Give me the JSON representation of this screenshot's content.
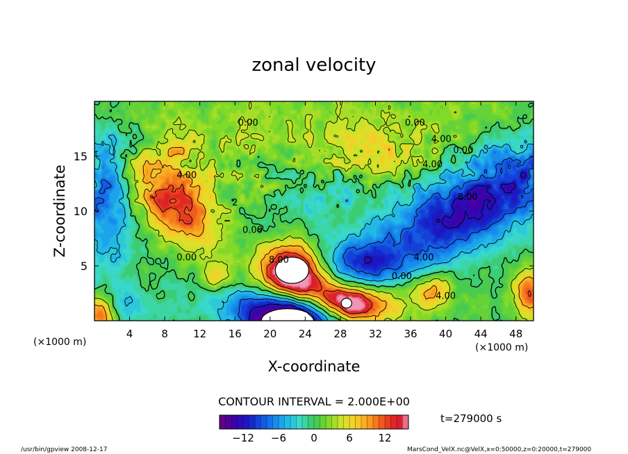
{
  "chart_data": {
    "type": "heatmap",
    "title": "zonal velocity",
    "xlabel": "X-coordinate",
    "ylabel": "Z-coordinate",
    "x_unit_left": "(×1000 m)",
    "x_unit_right": "(×1000 m)",
    "xlim": [
      0,
      50
    ],
    "ylim": [
      0,
      20
    ],
    "x_ticks": [
      "4",
      "8",
      "12",
      "16",
      "20",
      "24",
      "28",
      "32",
      "36",
      "40",
      "44",
      "48"
    ],
    "x_tick_values": [
      4,
      8,
      12,
      16,
      20,
      24,
      28,
      32,
      36,
      40,
      44,
      48
    ],
    "y_ticks": [
      "5",
      "10",
      "15"
    ],
    "y_tick_values": [
      5,
      10,
      15
    ],
    "contour_interval_text": "CONTOUR INTERVAL = 2.000E+00",
    "time_text": "t=279000 s",
    "colorbar": {
      "range": [
        -16,
        16
      ],
      "ticks": [
        "−12",
        "−6",
        "0",
        "6",
        "12"
      ],
      "tick_values": [
        -12,
        -6,
        0,
        6,
        12
      ]
    },
    "contour_labels": [
      {
        "text": "0.00",
        "x": 17.5,
        "z": 17.8
      },
      {
        "text": "0.00",
        "x": 36.5,
        "z": 17.8
      },
      {
        "text": "4.00",
        "x": 39.5,
        "z": 16.3
      },
      {
        "text": "0.00",
        "x": 42.0,
        "z": 15.3
      },
      {
        "text": "4.00",
        "x": 38.5,
        "z": 14.0
      },
      {
        "text": "8.00",
        "x": 42.5,
        "z": 11.0
      },
      {
        "text": "4.00",
        "x": 10.5,
        "z": 13.0
      },
      {
        "text": "2",
        "x": 16.0,
        "z": 10.5
      },
      {
        "text": "0.00",
        "x": 18.0,
        "z": 8.0
      },
      {
        "text": "0.00",
        "x": 10.5,
        "z": 5.5
      },
      {
        "text": "8.00",
        "x": 21.0,
        "z": 5.3
      },
      {
        "text": "4.00",
        "x": 37.5,
        "z": 5.5
      },
      {
        "text": "0.00",
        "x": 35.0,
        "z": 3.8
      },
      {
        "text": "4.00",
        "x": 40.0,
        "z": 2.0
      }
    ],
    "blobs": [
      {
        "x": 9.0,
        "z": 10.8,
        "sx": 3.5,
        "sz": 2.0,
        "amp": 13,
        "rot": -0.6
      },
      {
        "x": 22.5,
        "z": 4.5,
        "sx": 2.6,
        "sz": 1.8,
        "amp": 20,
        "rot": 0
      },
      {
        "x": 27.0,
        "z": 2.2,
        "sx": 4.5,
        "sz": 1.2,
        "amp": 11,
        "rot": -0.2
      },
      {
        "x": 29.0,
        "z": 1.5,
        "sx": 2.0,
        "sz": 1.0,
        "amp": 8,
        "rot": 0
      },
      {
        "x": 22.0,
        "z": 0.2,
        "sx": 3.5,
        "sz": 1.6,
        "amp": -20,
        "rot": 0
      },
      {
        "x": 45.5,
        "z": 11.8,
        "sx": 7.0,
        "sz": 2.8,
        "amp": -10,
        "rot": 0.35
      },
      {
        "x": 39.0,
        "z": 8.5,
        "sx": 6.0,
        "sz": 2.2,
        "amp": -6,
        "rot": 0.3
      },
      {
        "x": 30.0,
        "z": 5.3,
        "sx": 3.8,
        "sz": 1.5,
        "amp": -9,
        "rot": 0
      },
      {
        "x": 1.0,
        "z": 11.5,
        "sx": 2.4,
        "sz": 5.0,
        "amp": -8,
        "rot": 0
      },
      {
        "x": 18.5,
        "z": 1.8,
        "sx": 5.0,
        "sz": 1.6,
        "amp": -5,
        "rot": 0
      },
      {
        "x": 3.0,
        "z": 1.3,
        "sx": 2.8,
        "sz": 1.2,
        "amp": -5,
        "rot": 0
      },
      {
        "x": 0.8,
        "z": 0.8,
        "sx": 1.2,
        "sz": 1.2,
        "amp": 14,
        "rot": 0
      },
      {
        "x": 49.5,
        "z": 2.5,
        "sx": 1.3,
        "sz": 1.5,
        "amp": 11,
        "rot": 0
      },
      {
        "x": 38.5,
        "z": 2.8,
        "sx": 1.5,
        "sz": 1.0,
        "amp": 8,
        "rot": 0
      },
      {
        "x": 32.5,
        "z": 2.0,
        "sx": 4.0,
        "sz": 1.2,
        "amp": 4,
        "rot": 0
      },
      {
        "x": 31.5,
        "z": 15.5,
        "sx": 6.0,
        "sz": 1.8,
        "amp": 5,
        "rot": 0
      },
      {
        "x": 26.0,
        "z": 11.5,
        "sx": 5.0,
        "sz": 3.0,
        "amp": -3,
        "rot": 0
      },
      {
        "x": 9.5,
        "z": 15.8,
        "sx": 1.8,
        "sz": 1.2,
        "amp": 4,
        "rot": 0
      },
      {
        "x": 14.0,
        "z": 4.0,
        "sx": 1.2,
        "sz": 0.8,
        "amp": 7,
        "rot": 0
      },
      {
        "x": 15.0,
        "z": 14.0,
        "sx": 8.0,
        "sz": 3.0,
        "amp": 2,
        "rot": 0
      },
      {
        "x": 25.0,
        "z": 19.0,
        "sx": 25.0,
        "sz": 1.5,
        "amp": 2,
        "rot": 0
      }
    ],
    "white_regions": [
      {
        "x": 22.5,
        "z": 4.6,
        "rx": 1.9,
        "rz": 1.2
      },
      {
        "x": 22.0,
        "z": 0.0,
        "rx": 3.0,
        "rz": 1.1
      },
      {
        "x": 28.7,
        "z": 1.6,
        "rx": 0.6,
        "rz": 0.45
      }
    ]
  },
  "footer": {
    "left": "/usr/bin/gpview   2008-12-17",
    "right": "MarsCond_VelX.nc@VelX,x=0:50000,z=0:20000,t=279000"
  }
}
